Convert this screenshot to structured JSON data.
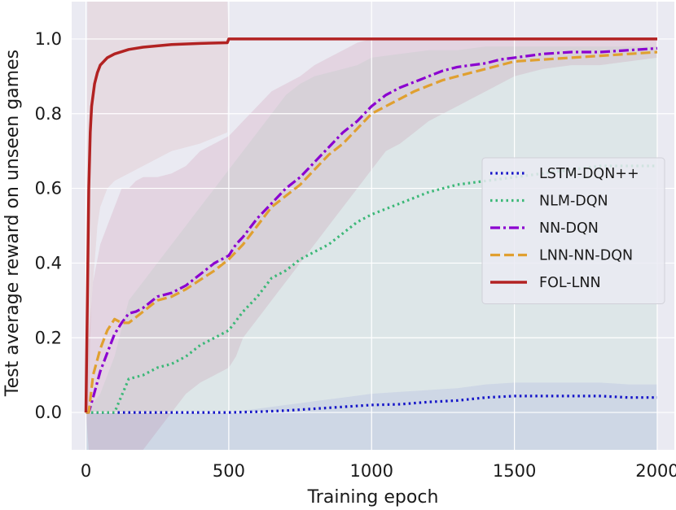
{
  "chart_data": {
    "type": "line",
    "title": "",
    "xlabel": "Training epoch",
    "ylabel": "Test average reward on unseen games",
    "xlim": [
      -50,
      2060
    ],
    "ylim": [
      -0.1,
      1.1
    ],
    "xticks": [
      0,
      500,
      1000,
      1500,
      2000
    ],
    "yticks": [
      0.0,
      0.2,
      0.4,
      0.6,
      0.8,
      1.0
    ],
    "xtick_labels": [
      "0",
      "500",
      "1000",
      "1500",
      "2000"
    ],
    "ytick_labels": [
      "0.0",
      "0.2",
      "0.4",
      "0.6",
      "0.8",
      "1.0"
    ],
    "grid": true,
    "background": "#eaeaf2",
    "legend_position": "center-right",
    "series": [
      {
        "name": "LSTM-DQN++",
        "color": "#1414c8",
        "style": "dotted",
        "x": [
          0,
          100,
          200,
          300,
          400,
          500,
          600,
          700,
          800,
          900,
          1000,
          1100,
          1200,
          1300,
          1400,
          1500,
          1600,
          1700,
          1800,
          1900,
          2000
        ],
        "values": [
          0.0,
          0.0,
          0.0,
          0.0,
          0.0,
          0.0,
          0.002,
          0.005,
          0.01,
          0.015,
          0.02,
          0.022,
          0.028,
          0.032,
          0.04,
          0.044,
          0.044,
          0.044,
          0.044,
          0.04,
          0.04
        ],
        "band_lower": [
          -0.1,
          -0.1,
          -0.1,
          -0.1,
          -0.1,
          -0.1,
          -0.1,
          -0.1,
          -0.1,
          -0.1,
          -0.1,
          -0.1,
          -0.1,
          -0.1,
          -0.1,
          -0.1,
          -0.1,
          -0.1,
          -0.1,
          -0.1,
          -0.1
        ],
        "band_upper": [
          0.0,
          0.0,
          0.0,
          0.0,
          0.0,
          0.0,
          0.01,
          0.02,
          0.03,
          0.04,
          0.05,
          0.055,
          0.06,
          0.065,
          0.075,
          0.08,
          0.08,
          0.08,
          0.08,
          0.075,
          0.075
        ]
      },
      {
        "name": "NLM-DQN",
        "color": "#3cb878",
        "style": "dotted",
        "x": [
          0,
          50,
          100,
          150,
          200,
          250,
          300,
          350,
          400,
          450,
          500,
          550,
          600,
          650,
          700,
          750,
          800,
          850,
          900,
          950,
          1000,
          1100,
          1200,
          1300,
          1400,
          1500,
          1600,
          1700,
          1800,
          1900,
          2000
        ],
        "values": [
          0.0,
          0.0,
          0.0,
          0.09,
          0.1,
          0.12,
          0.13,
          0.15,
          0.18,
          0.2,
          0.22,
          0.27,
          0.31,
          0.36,
          0.38,
          0.41,
          0.43,
          0.45,
          0.48,
          0.51,
          0.53,
          0.56,
          0.59,
          0.61,
          0.62,
          0.63,
          0.64,
          0.65,
          0.66,
          0.66,
          0.66
        ],
        "band_lower": [
          -0.1,
          -0.1,
          -0.1,
          -0.1,
          -0.1,
          -0.1,
          -0.1,
          -0.1,
          -0.1,
          -0.1,
          -0.1,
          -0.1,
          -0.1,
          -0.1,
          -0.1,
          -0.1,
          -0.1,
          -0.1,
          -0.1,
          -0.1,
          -0.1,
          -0.1,
          -0.1,
          -0.1,
          -0.1,
          -0.1,
          -0.1,
          -0.1,
          -0.1,
          -0.1,
          -0.1
        ],
        "band_upper": [
          0.0,
          0.05,
          0.15,
          0.3,
          0.35,
          0.4,
          0.45,
          0.5,
          0.55,
          0.6,
          0.65,
          0.7,
          0.75,
          0.8,
          0.85,
          0.88,
          0.9,
          0.91,
          0.92,
          0.93,
          0.95,
          0.96,
          0.97,
          0.97,
          0.98,
          0.98,
          0.98,
          0.98,
          0.98,
          0.98,
          0.98
        ]
      },
      {
        "name": "NN-DQN",
        "color": "#8b00d0",
        "style": "dashdot",
        "x": [
          0,
          10,
          25,
          50,
          75,
          100,
          125,
          150,
          175,
          200,
          250,
          300,
          350,
          400,
          450,
          500,
          525,
          550,
          600,
          650,
          700,
          750,
          800,
          850,
          900,
          950,
          1000,
          1050,
          1100,
          1150,
          1200,
          1250,
          1300,
          1350,
          1400,
          1450,
          1500,
          1600,
          1700,
          1800,
          1900,
          2000
        ],
        "values": [
          0.0,
          0.0,
          0.04,
          0.11,
          0.16,
          0.21,
          0.24,
          0.265,
          0.27,
          0.28,
          0.31,
          0.32,
          0.34,
          0.37,
          0.4,
          0.42,
          0.45,
          0.47,
          0.52,
          0.56,
          0.6,
          0.63,
          0.67,
          0.71,
          0.75,
          0.78,
          0.82,
          0.85,
          0.87,
          0.885,
          0.9,
          0.915,
          0.925,
          0.93,
          0.935,
          0.945,
          0.95,
          0.96,
          0.965,
          0.965,
          0.97,
          0.975
        ],
        "band_lower": [
          0.0,
          -0.1,
          -0.1,
          -0.1,
          -0.1,
          -0.1,
          -0.1,
          -0.1,
          -0.1,
          -0.1,
          -0.05,
          0.0,
          0.05,
          0.08,
          0.1,
          0.12,
          0.15,
          0.2,
          0.25,
          0.3,
          0.35,
          0.4,
          0.45,
          0.5,
          0.55,
          0.6,
          0.65,
          0.7,
          0.72,
          0.75,
          0.78,
          0.8,
          0.82,
          0.84,
          0.86,
          0.88,
          0.9,
          0.92,
          0.93,
          0.93,
          0.94,
          0.95
        ],
        "band_upper": [
          0.0,
          0.2,
          0.35,
          0.45,
          0.5,
          0.55,
          0.6,
          0.6,
          0.62,
          0.63,
          0.63,
          0.64,
          0.66,
          0.7,
          0.72,
          0.74,
          0.76,
          0.78,
          0.82,
          0.86,
          0.88,
          0.9,
          0.93,
          0.95,
          0.97,
          0.99,
          1.0,
          1.0,
          1.0,
          1.0,
          1.0,
          1.0,
          1.0,
          1.0,
          1.0,
          1.0,
          1.0,
          1.0,
          1.0,
          1.0,
          1.0,
          1.0
        ]
      },
      {
        "name": "LNN-NN-DQN",
        "color": "#e0a030",
        "style": "dashed",
        "x": [
          0,
          10,
          25,
          50,
          75,
          100,
          125,
          150,
          175,
          200,
          250,
          300,
          350,
          400,
          450,
          500,
          525,
          550,
          600,
          650,
          700,
          750,
          800,
          850,
          900,
          950,
          1000,
          1050,
          1100,
          1150,
          1200,
          1250,
          1300,
          1350,
          1400,
          1450,
          1500,
          1600,
          1700,
          1800,
          1900,
          2000
        ],
        "values": [
          0.0,
          0.0,
          0.1,
          0.17,
          0.22,
          0.25,
          0.24,
          0.24,
          0.255,
          0.27,
          0.3,
          0.31,
          0.33,
          0.355,
          0.38,
          0.41,
          0.43,
          0.45,
          0.5,
          0.55,
          0.58,
          0.61,
          0.65,
          0.69,
          0.72,
          0.76,
          0.8,
          0.82,
          0.84,
          0.86,
          0.875,
          0.89,
          0.9,
          0.91,
          0.92,
          0.93,
          0.94,
          0.945,
          0.95,
          0.955,
          0.96,
          0.965
        ],
        "band_lower": [
          0.0,
          -0.1,
          -0.1,
          -0.1,
          -0.1,
          -0.1,
          -0.1,
          -0.1,
          -0.1,
          -0.1,
          -0.05,
          0.0,
          0.05,
          0.08,
          0.1,
          0.12,
          0.15,
          0.2,
          0.25,
          0.3,
          0.35,
          0.4,
          0.45,
          0.5,
          0.55,
          0.6,
          0.65,
          0.7,
          0.72,
          0.75,
          0.78,
          0.8,
          0.82,
          0.84,
          0.86,
          0.88,
          0.9,
          0.92,
          0.93,
          0.93,
          0.94,
          0.95
        ],
        "band_upper": [
          0.0,
          0.2,
          0.35,
          0.45,
          0.5,
          0.55,
          0.6,
          0.6,
          0.62,
          0.63,
          0.63,
          0.64,
          0.66,
          0.7,
          0.72,
          0.74,
          0.76,
          0.78,
          0.82,
          0.86,
          0.88,
          0.9,
          0.93,
          0.95,
          0.97,
          0.99,
          1.0,
          1.0,
          1.0,
          1.0,
          1.0,
          1.0,
          1.0,
          1.0,
          1.0,
          1.0,
          1.0,
          1.0,
          1.0,
          1.0,
          1.0,
          1.0
        ]
      },
      {
        "name": "FOL-LNN",
        "color": "#b22222",
        "style": "solid",
        "x": [
          0,
          5,
          10,
          15,
          20,
          30,
          40,
          50,
          75,
          100,
          150,
          200,
          300,
          400,
          495,
          500,
          510,
          1000,
          1500,
          2000
        ],
        "values": [
          0.0,
          0.3,
          0.6,
          0.75,
          0.82,
          0.88,
          0.91,
          0.93,
          0.95,
          0.96,
          0.972,
          0.978,
          0.985,
          0.988,
          0.99,
          1.0,
          1.0,
          1.0,
          1.0,
          1.0
        ],
        "band_lower": [
          0.0,
          0.0,
          0.0,
          0.2,
          0.3,
          0.4,
          0.5,
          0.55,
          0.6,
          0.62,
          0.64,
          0.66,
          0.7,
          0.72,
          0.75,
          1.0,
          1.0,
          1.0,
          1.0,
          1.0
        ],
        "band_upper": [
          0.0,
          1.1,
          1.1,
          1.1,
          1.1,
          1.1,
          1.1,
          1.1,
          1.1,
          1.1,
          1.1,
          1.1,
          1.1,
          1.1,
          1.1,
          1.0,
          1.0,
          1.0,
          1.0,
          1.0
        ]
      }
    ]
  }
}
